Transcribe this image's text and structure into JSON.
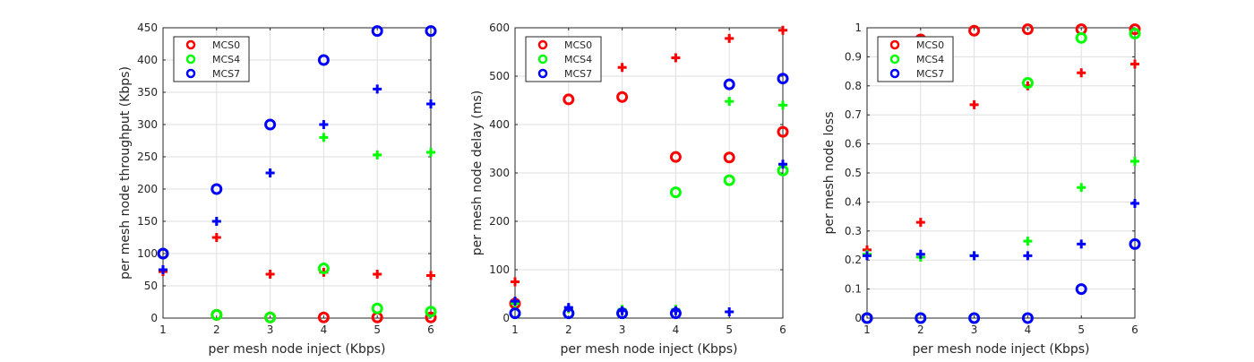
{
  "colors": {
    "MCS0": "#ff0000",
    "MCS4": "#00ff00",
    "MCS7": "#0000ff",
    "axis": "#262626",
    "grid": "#dfdfdf"
  },
  "chart_data": [
    {
      "type": "scatter",
      "xlabel": "per mesh node inject (Kbps)",
      "ylabel": "per mesh node throughput (Kbps)",
      "xlim": [
        1,
        6
      ],
      "ylim": [
        0,
        450
      ],
      "xticks": [
        1,
        2,
        3,
        4,
        5,
        6
      ],
      "yticks": [
        0,
        50,
        100,
        150,
        200,
        250,
        300,
        350,
        400,
        450
      ],
      "ytick_labels": [
        "0",
        "50",
        "100",
        "150",
        "200",
        "250",
        "300",
        "350",
        "400",
        "450"
      ],
      "grid": true,
      "legend": "top-left",
      "legend_entries": [
        "MCS0",
        "MCS4",
        "MCS7"
      ],
      "series": [
        {
          "name": "MCS0",
          "marker": "circle",
          "x": [
            1,
            2,
            3,
            4,
            5,
            6
          ],
          "y": [
            100,
            5,
            1,
            1,
            1,
            1
          ]
        },
        {
          "name": "MCS0",
          "marker": "plus",
          "x": [
            1,
            2,
            3,
            4,
            5,
            6
          ],
          "y": [
            72,
            125,
            68,
            71,
            68,
            66
          ]
        },
        {
          "name": "MCS4",
          "marker": "circle",
          "x": [
            1,
            2,
            3,
            4,
            5,
            6
          ],
          "y": [
            100,
            5,
            1,
            77,
            15,
            10
          ]
        },
        {
          "name": "MCS4",
          "marker": "plus",
          "x": [
            1,
            2,
            3,
            4,
            5,
            6
          ],
          "y": [
            75,
            150,
            225,
            280,
            253,
            257
          ]
        },
        {
          "name": "MCS7",
          "marker": "circle",
          "x": [
            1,
            2,
            3,
            4,
            5,
            6
          ],
          "y": [
            100,
            200,
            300,
            400,
            445,
            445
          ]
        },
        {
          "name": "MCS7",
          "marker": "plus",
          "x": [
            1,
            2,
            3,
            4,
            5,
            6
          ],
          "y": [
            75,
            150,
            225,
            300,
            355,
            332
          ]
        }
      ]
    },
    {
      "type": "scatter",
      "xlabel": "per mesh node inject (Kbps)",
      "ylabel": "per mesh node delay (ms)",
      "xlim": [
        1,
        6
      ],
      "ylim": [
        0,
        600
      ],
      "xticks": [
        1,
        2,
        3,
        4,
        5,
        6
      ],
      "yticks": [
        0,
        100,
        200,
        300,
        400,
        500,
        600
      ],
      "ytick_labels": [
        "0",
        "100",
        "200",
        "300",
        "400",
        "500",
        "600"
      ],
      "grid": true,
      "legend": "top-left",
      "legend_entries": [
        "MCS0",
        "MCS4",
        "MCS7"
      ],
      "series": [
        {
          "name": "MCS0",
          "marker": "circle",
          "x": [
            1,
            2,
            3,
            4,
            5,
            6
          ],
          "y": [
            30,
            452,
            457,
            333,
            332,
            385
          ]
        },
        {
          "name": "MCS0",
          "marker": "plus",
          "x": [
            1,
            2,
            3,
            4,
            5,
            6
          ],
          "y": [
            75,
            20,
            518,
            538,
            578,
            595
          ]
        },
        {
          "name": "MCS4",
          "marker": "circle",
          "x": [
            1,
            2,
            3,
            4,
            5,
            6
          ],
          "y": [
            10,
            10,
            10,
            260,
            285,
            305
          ]
        },
        {
          "name": "MCS4",
          "marker": "plus",
          "x": [
            1,
            2,
            3,
            4,
            5,
            6
          ],
          "y": [
            30,
            20,
            18,
            18,
            448,
            440
          ]
        },
        {
          "name": "MCS7",
          "marker": "circle",
          "x": [
            1,
            2,
            3,
            4,
            5,
            6
          ],
          "y": [
            10,
            10,
            10,
            10,
            483,
            495
          ]
        },
        {
          "name": "MCS7",
          "marker": "plus",
          "x": [
            1,
            2,
            3,
            4,
            5,
            6
          ],
          "y": [
            35,
            22,
            15,
            15,
            13,
            318
          ]
        }
      ]
    },
    {
      "type": "scatter",
      "xlabel": "per mesh node inject (Kbps)",
      "ylabel": "per mesh node loss",
      "xlim": [
        1,
        6
      ],
      "ylim": [
        0,
        1
      ],
      "xticks": [
        1,
        2,
        3,
        4,
        5,
        6
      ],
      "yticks": [
        0,
        0.1,
        0.2,
        0.3,
        0.4,
        0.5,
        0.6,
        0.7,
        0.8,
        0.9,
        1
      ],
      "ytick_labels": [
        "0",
        "0.1",
        "0.2",
        "0.3",
        "0.4",
        "0.5",
        "0.6",
        "0.7",
        "0.8",
        "0.9",
        "1"
      ],
      "grid": true,
      "legend": "top-left",
      "legend_entries": [
        "MCS0",
        "MCS4",
        "MCS7"
      ],
      "series": [
        {
          "name": "MCS0",
          "marker": "circle",
          "x": [
            1,
            2,
            3,
            4,
            5,
            6
          ],
          "y": [
            0,
            0.96,
            0.99,
            0.995,
            0.995,
            0.995
          ]
        },
        {
          "name": "MCS0",
          "marker": "plus",
          "x": [
            1,
            2,
            3,
            4,
            5,
            6
          ],
          "y": [
            0.235,
            0.33,
            0.735,
            0.8,
            0.845,
            0.875
          ]
        },
        {
          "name": "MCS4",
          "marker": "circle",
          "x": [
            1,
            2,
            3,
            4,
            5,
            6
          ],
          "y": [
            0,
            0,
            0,
            0.81,
            0.965,
            0.98
          ]
        },
        {
          "name": "MCS4",
          "marker": "plus",
          "x": [
            1,
            2,
            3,
            4,
            5,
            6
          ],
          "y": [
            0.22,
            0.21,
            0.215,
            0.265,
            0.45,
            0.54
          ]
        },
        {
          "name": "MCS7",
          "marker": "circle",
          "x": [
            1,
            2,
            3,
            4,
            5,
            6
          ],
          "y": [
            0,
            0,
            0,
            0,
            0.1,
            0.255
          ]
        },
        {
          "name": "MCS7",
          "marker": "plus",
          "x": [
            1,
            2,
            3,
            4,
            5,
            6
          ],
          "y": [
            0.215,
            0.22,
            0.215,
            0.215,
            0.255,
            0.395
          ]
        }
      ]
    }
  ]
}
